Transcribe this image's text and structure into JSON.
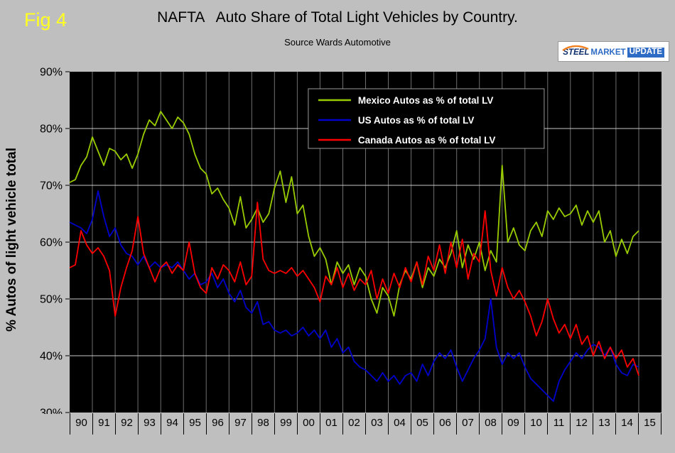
{
  "figure_label": "Fig 4",
  "header": {
    "title": "NAFTA   Auto Share of Total Light Vehicles by Country.",
    "subtitle": "Source Wards Automotive"
  },
  "logo": {
    "steel": "STEEL",
    "market": "MARKET",
    "update": "UPDATE"
  },
  "y_axis_label": "% Autos of light vehicle total",
  "colors": {
    "page_background": "#bfbfbf",
    "plot_background": "#000000",
    "figure_label": "#ffff22",
    "mexico": "#99cc00",
    "us": "#0000cc",
    "canada": "#ff0000"
  },
  "chart_data": {
    "type": "line",
    "title": "NAFTA Auto Share of Total Light Vehicles by Country.",
    "subtitle": "Source Wards Automotive",
    "ylabel": "% Autos of light vehicle total",
    "xlabel": "",
    "ylim": [
      30,
      90
    ],
    "y_tick_step": 10,
    "y_tick_labels": [
      "90%",
      "80%",
      "70%",
      "60%",
      "50%",
      "40%",
      "30%"
    ],
    "grid": true,
    "legend_position": "inside-top-center",
    "x_start_year": 1990,
    "points_per_year": 4,
    "x_tick_labels": [
      "90",
      "91",
      "92",
      "93",
      "94",
      "95",
      "96",
      "97",
      "98",
      "99",
      "00",
      "01",
      "02",
      "03",
      "04",
      "05",
      "06",
      "07",
      "08",
      "09",
      "10",
      "11",
      "12",
      "13",
      "14",
      "15"
    ],
    "series": [
      {
        "name": "Mexico Autos as % of total LV",
        "color": "#99cc00",
        "values": [
          70.5,
          71,
          73.5,
          75,
          78.5,
          76,
          73.5,
          76.5,
          76,
          74.5,
          75.5,
          73,
          75.5,
          79,
          81.5,
          80.5,
          83,
          81.5,
          80,
          82,
          81,
          79,
          75.5,
          73,
          72,
          68.5,
          69.5,
          67.5,
          66,
          63,
          68,
          62.5,
          64,
          66,
          63.5,
          65,
          69.5,
          72.5,
          67,
          71.5,
          65,
          66.5,
          61,
          57.5,
          59,
          57,
          52.5,
          56.5,
          54.5,
          56,
          52.5,
          55.5,
          54,
          50,
          47.5,
          52,
          50.5,
          47,
          52.5,
          55,
          53.5,
          56.5,
          52,
          55.5,
          54,
          57,
          55.5,
          58,
          62,
          55.5,
          59.5,
          57,
          60,
          55,
          58.5,
          56.5,
          73.5,
          60,
          62.5,
          59.5,
          58.5,
          62,
          63.5,
          61,
          65.5,
          64,
          66,
          64.5,
          65,
          66.5,
          63,
          65.5,
          63.5,
          65.5,
          60,
          62,
          57.5,
          60.5,
          58,
          61,
          62
        ]
      },
      {
        "name": "US Autos as % of total LV",
        "color": "#0000cc",
        "values": [
          63.5,
          63,
          62.5,
          61.5,
          64,
          69,
          64.5,
          61,
          62.5,
          59.5,
          58,
          57.5,
          56,
          57.5,
          55.5,
          56.5,
          55.5,
          56,
          55.5,
          56.5,
          55,
          53.5,
          54.5,
          52.5,
          53,
          54.5,
          52,
          53.5,
          51,
          49.5,
          51.5,
          48.5,
          47.5,
          49.5,
          45.5,
          46,
          44.5,
          44,
          44.5,
          43.5,
          44,
          45,
          43.5,
          44.5,
          43,
          44.5,
          41.5,
          43,
          40.5,
          41.5,
          39,
          38,
          37.5,
          36.5,
          35.5,
          37,
          35.5,
          36.5,
          35,
          36.5,
          37,
          35.5,
          38.5,
          36.5,
          39,
          40.5,
          39.5,
          41,
          38,
          35.5,
          37.5,
          39.5,
          41,
          43,
          50,
          41.5,
          38.5,
          40.5,
          39.5,
          40.5,
          38,
          36,
          35,
          34,
          33,
          32,
          35.5,
          37.5,
          39,
          40.5,
          39.5,
          41,
          42,
          41.5,
          40,
          41.5,
          38.5,
          37,
          36.5,
          38.5,
          38
        ]
      },
      {
        "name": "Canada Autos as % of total LV",
        "color": "#ff0000",
        "values": [
          55.5,
          56,
          62,
          59.5,
          58,
          59,
          57.5,
          55,
          47,
          52,
          55.5,
          58.5,
          64.5,
          58,
          55.5,
          53,
          55.5,
          56.5,
          54.5,
          56,
          55,
          60,
          54.5,
          52,
          51,
          55.5,
          53.5,
          56,
          55,
          53,
          56.5,
          52.5,
          54,
          67,
          57,
          55,
          54.5,
          55,
          54.5,
          55.5,
          54,
          55,
          53.5,
          52,
          49.5,
          54,
          52.5,
          55.5,
          52,
          54.5,
          51.5,
          53.5,
          52.5,
          55,
          50,
          53.5,
          51,
          54.5,
          52,
          55.5,
          53,
          56.5,
          52.5,
          57.5,
          55,
          59.5,
          54.5,
          60,
          55.5,
          60.5,
          53.5,
          58,
          56.5,
          65.5,
          55,
          50.5,
          55.5,
          52,
          50,
          51.5,
          49.5,
          47,
          43.5,
          46,
          50,
          46.5,
          44,
          45.5,
          43,
          45.5,
          42,
          43.5,
          40,
          42.5,
          39.5,
          41.5,
          39.5,
          41,
          38,
          39.5,
          36.5
        ]
      }
    ]
  }
}
